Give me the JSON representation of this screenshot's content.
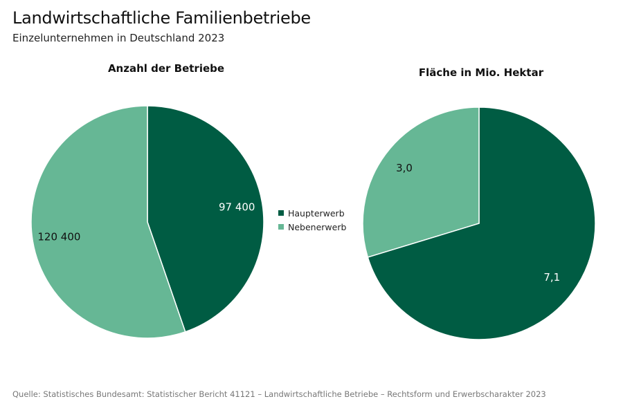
{
  "header": {
    "title": "Landwirtschaftliche Familienbetriebe",
    "subtitle": "Einzelunternehmen in Deutschland 2023"
  },
  "legend": {
    "items": [
      {
        "label": "Haupterwerb",
        "color": "#005c43"
      },
      {
        "label": "Nebenerwerb",
        "color": "#66b795"
      }
    ]
  },
  "chart_data": [
    {
      "type": "pie",
      "title": "Anzahl der Betriebe",
      "categories": [
        "Haupterwerb",
        "Nebenerwerb"
      ],
      "values": [
        97400,
        120400
      ],
      "value_labels": [
        "97 400",
        "120 400"
      ],
      "colors": [
        "#005c43",
        "#66b795"
      ],
      "label_colors": [
        "#ffffff",
        "#111111"
      ]
    },
    {
      "type": "pie",
      "title": "Fläche in Mio. Hektar",
      "categories": [
        "Haupterwerb",
        "Nebenerwerb"
      ],
      "values": [
        7.1,
        3.0
      ],
      "value_labels": [
        "7,1",
        "3,0"
      ],
      "colors": [
        "#005c43",
        "#66b795"
      ],
      "label_colors": [
        "#ffffff",
        "#111111"
      ]
    }
  ],
  "footer": {
    "source": "Quelle: Statistisches Bundesamt: Statistischer Bericht 41121 – Landwirtschaftliche Betriebe – Rechtsform und Erwerbscharakter 2023"
  }
}
